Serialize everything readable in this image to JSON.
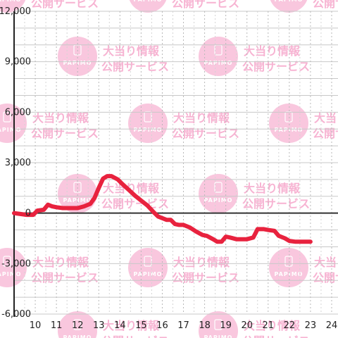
{
  "chart_data": {
    "type": "line",
    "title": "",
    "xlabel": "",
    "ylabel": "",
    "x_ticks": [
      "10",
      "11",
      "12",
      "13",
      "14",
      "15",
      "16",
      "17",
      "18",
      "19",
      "20",
      "21",
      "22",
      "23",
      "24"
    ],
    "y_ticks": [
      "12,000",
      "9,000",
      "6,000",
      "3,000",
      "0",
      "-3,000",
      "-6,000"
    ],
    "xlim": [
      9,
      24.3
    ],
    "ylim": [
      -6000,
      12000
    ],
    "grid": true,
    "colors": {
      "line": "#e8223e",
      "zero_line": "#333333",
      "grid": "#c8c8c8"
    },
    "series": [
      {
        "x": [
          9.0,
          9.3,
          9.6,
          9.9,
          10.1,
          10.4,
          10.6,
          10.8,
          11.0,
          11.3,
          11.6,
          12.0,
          12.3,
          12.6,
          12.8,
          13.0,
          13.2,
          13.4,
          13.6,
          13.9,
          14.1,
          14.4,
          14.7,
          15.0,
          15.3,
          15.6,
          15.8,
          16.0,
          16.2,
          16.4,
          16.6,
          16.8,
          17.0,
          17.3,
          17.6,
          17.9,
          18.1,
          18.4,
          18.6,
          18.8,
          19.0,
          19.2,
          19.5,
          19.8,
          20.0,
          20.3,
          20.5,
          20.8,
          21.0,
          21.3,
          21.5,
          21.8,
          22.0,
          22.3,
          22.6,
          23.0
        ],
        "y": [
          0,
          -50,
          -100,
          -100,
          150,
          200,
          500,
          400,
          350,
          300,
          300,
          300,
          400,
          550,
          900,
          1500,
          2050,
          2200,
          2200,
          2000,
          1750,
          1400,
          1050,
          750,
          450,
          50,
          -200,
          -300,
          -400,
          -400,
          -650,
          -700,
          -700,
          -850,
          -1100,
          -1300,
          -1350,
          -1550,
          -1700,
          -1700,
          -1400,
          -1450,
          -1550,
          -1550,
          -1550,
          -1450,
          -950,
          -950,
          -1000,
          -1050,
          -1350,
          -1500,
          -1650,
          -1700,
          -1700,
          -1700
        ]
      }
    ]
  },
  "watermark": {
    "line1": "大当り情報",
    "line2": "公開サービス",
    "logo_text": "PAPIMO",
    "logo_color": "#f9c7de",
    "text_color": "#f7b3d2"
  }
}
